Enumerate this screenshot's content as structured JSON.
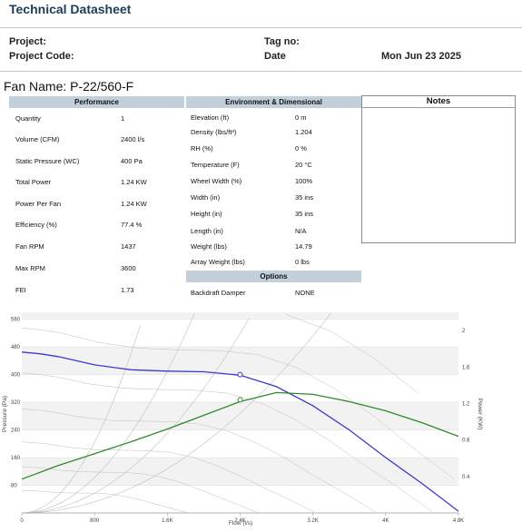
{
  "header": {
    "title": "Technical Datasheet",
    "project_label": "Project:",
    "project_code_label": "Project Code:",
    "tag_label": "Tag no:",
    "date_label": "Date",
    "date_value": "Mon Jun 23 2025"
  },
  "fan_name": "Fan Name: P-22/560-F",
  "performance": {
    "title": "Performance",
    "rows": [
      {
        "label": "Quantity",
        "value": "1"
      },
      {
        "label": "Volume (CFM)",
        "value": "2400 l/s"
      },
      {
        "label": "Static Pressure (WC)",
        "value": "400 Pa"
      },
      {
        "label": "Total Power",
        "value": "1.24 KW"
      },
      {
        "label": "Power Per Fan",
        "value": "1.24 KW"
      },
      {
        "label": "Efficiency (%)",
        "value": "77.4 %"
      },
      {
        "label": "Fan RPM",
        "value": "1437"
      },
      {
        "label": "Max RPM",
        "value": "3600"
      },
      {
        "label": "FEI",
        "value": "1.73"
      }
    ]
  },
  "environment": {
    "title": "Environment & Dimensional",
    "rows": [
      {
        "label": "Elevation (ft)",
        "value": "0 m"
      },
      {
        "label": "Density (lbs/ft³)",
        "value": "1.204"
      },
      {
        "label": "RH (%)",
        "value": "0 %"
      },
      {
        "label": "Temperature (F)",
        "value": "20 °C"
      },
      {
        "label": "Wheel Width (%)",
        "value": "100%"
      },
      {
        "label": "Width (in)",
        "value": "35 ins"
      },
      {
        "label": "Height (in)",
        "value": "35 ins"
      },
      {
        "label": "Length (in)",
        "value": "N/A"
      },
      {
        "label": "Weight (lbs)",
        "value": "14.79"
      },
      {
        "label": "Array Weight (lbs)",
        "value": "0 lbs"
      }
    ]
  },
  "options": {
    "title": "Options",
    "rows": [
      {
        "label": "Backdraft Damper",
        "value": "NONE"
      }
    ]
  },
  "notes": {
    "title": "Notes"
  },
  "chart_data": {
    "type": "line",
    "xlabel": "Flow (l/s)",
    "ylabel": "Pressure (Pa)",
    "y2label": "Power (KW)",
    "xlim": [
      0,
      4800
    ],
    "ylim": [
      0,
      580
    ],
    "y2lim": [
      0,
      2.2
    ],
    "x_ticks": [
      "0",
      "800",
      "1.6K",
      "2.4K",
      "3.2K",
      "4K",
      "4.8K"
    ],
    "y_ticks": [
      "80",
      "160",
      "240",
      "320",
      "400",
      "480",
      "560"
    ],
    "y2_ticks": [
      "0.4",
      "0.8",
      "1.2",
      "1.6",
      "2"
    ],
    "grid": true,
    "colors": {
      "pressure": "#3a3acc",
      "power": "#2e8a2e",
      "system": "#bfbfbf"
    },
    "series": [
      {
        "axis": "left",
        "x": [
          0,
          200,
          400,
          800,
          1200,
          1600,
          2000,
          2400,
          2800,
          3200,
          3600,
          4000,
          4400,
          4800
        ],
        "values": [
          465,
          460,
          452,
          428,
          414,
          410,
          408,
          398,
          365,
          310,
          240,
          160,
          85,
          5
        ]
      },
      {
        "axis": "right",
        "x": [
          0,
          400,
          800,
          1200,
          1600,
          2000,
          2400,
          2800,
          3200,
          3600,
          4000,
          4400,
          4800
        ],
        "values": [
          0.37,
          0.52,
          0.65,
          0.78,
          0.92,
          1.07,
          1.22,
          1.32,
          1.3,
          1.22,
          1.12,
          0.99,
          0.84
        ]
      }
    ],
    "operating_point": {
      "flow": 2400,
      "pressure": 400,
      "power": 1.24
    }
  }
}
